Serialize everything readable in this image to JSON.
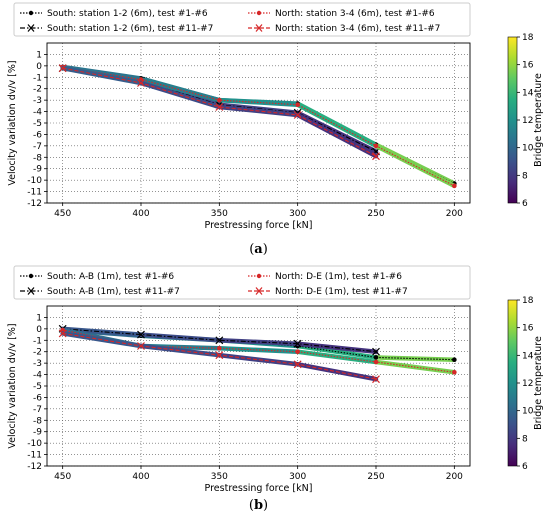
{
  "chart_data": [
    {
      "panel": "a",
      "caption": "(a)",
      "type": "line",
      "xlabel": "Prestressing force [kN]",
      "ylabel": "Velocity variation dv/v [%]",
      "xlim": [
        460,
        190
      ],
      "ylim": [
        -12,
        2
      ],
      "xticks": [
        450,
        400,
        350,
        300,
        250,
        200
      ],
      "yticks": [
        1,
        0,
        -1,
        -2,
        -3,
        -4,
        -5,
        -6,
        -7,
        -8,
        -9,
        -10,
        -11,
        -12
      ],
      "grid": true,
      "legend_position": "top",
      "colorbar": {
        "label": "Bridge temperature",
        "min": 6,
        "max": 18,
        "ticks": [
          6,
          8,
          10,
          12,
          14,
          16,
          18
        ]
      },
      "series": [
        {
          "name": "South: station 1-2 (6m), test #1-#6",
          "marker": "dot",
          "line": "dotted",
          "color": "#000000",
          "x": [
            450,
            400,
            350,
            300,
            250,
            200
          ],
          "y": [
            -0.1,
            -1.1,
            -3.0,
            -3.3,
            -6.9,
            -10.3
          ],
          "temperature": [
            10.5,
            10.8,
            11.5,
            12.5,
            14.5,
            16.5
          ]
        },
        {
          "name": "South: station 1-2 (6m), test #11-#7",
          "marker": "x",
          "line": "dashdot",
          "color": "#000000",
          "x": [
            450,
            400,
            350,
            300,
            250
          ],
          "y": [
            -0.2,
            -1.3,
            -3.4,
            -4.1,
            -7.5
          ],
          "temperature": [
            10.0,
            9.0,
            8.5,
            8.0,
            7.5
          ]
        },
        {
          "name": "North: station 3-4 (6m), test #1-#6",
          "marker": "dot",
          "line": "dotted",
          "color": "#d62728",
          "x": [
            450,
            400,
            350,
            300,
            250,
            200
          ],
          "y": [
            -0.1,
            -1.2,
            -3.0,
            -3.4,
            -7.0,
            -10.5
          ],
          "temperature": [
            10.5,
            10.8,
            11.5,
            12.5,
            14.5,
            16.5
          ]
        },
        {
          "name": "North: station 3-4 (6m), test #11-#7",
          "marker": "x",
          "line": "dashed",
          "color": "#d62728",
          "x": [
            450,
            400,
            350,
            300,
            250
          ],
          "y": [
            -0.2,
            -1.5,
            -3.6,
            -4.3,
            -7.9
          ],
          "temperature": [
            10.0,
            9.0,
            8.5,
            8.0,
            7.5
          ]
        }
      ]
    },
    {
      "panel": "b",
      "caption": "(b)",
      "type": "line",
      "xlabel": "Prestressing force [kN]",
      "ylabel": "Velocity variation dv/v [%]",
      "xlim": [
        460,
        190
      ],
      "ylim": [
        -12,
        2
      ],
      "xticks": [
        450,
        400,
        350,
        300,
        250,
        200
      ],
      "yticks": [
        1,
        0,
        -1,
        -2,
        -3,
        -4,
        -5,
        -6,
        -7,
        -8,
        -9,
        -10,
        -11,
        -12
      ],
      "grid": true,
      "legend_position": "top",
      "colorbar": {
        "label": "Bridge temperature",
        "min": 6,
        "max": 18,
        "ticks": [
          6,
          8,
          10,
          12,
          14,
          16,
          18
        ]
      },
      "series": [
        {
          "name": "South: A-B (1m), test #1-#6",
          "marker": "dot",
          "line": "dotted",
          "color": "#000000",
          "x": [
            450,
            400,
            350,
            300,
            250,
            200
          ],
          "y": [
            -0.1,
            -0.6,
            -1.0,
            -1.5,
            -2.5,
            -2.7
          ],
          "temperature": [
            10.0,
            10.5,
            11.5,
            12.5,
            14.5,
            16.5
          ]
        },
        {
          "name": "South: A-B (1m), test #11-#7",
          "marker": "x",
          "line": "dashdot",
          "color": "#000000",
          "x": [
            450,
            400,
            350,
            300,
            250
          ],
          "y": [
            0.0,
            -0.5,
            -1.0,
            -1.3,
            -2.0
          ],
          "temperature": [
            9.5,
            9.0,
            8.5,
            8.0,
            7.5
          ]
        },
        {
          "name": "North: D-E (1m), test #1-#6",
          "marker": "dot",
          "line": "dotted",
          "color": "#d62728",
          "x": [
            450,
            400,
            350,
            300,
            250,
            200
          ],
          "y": [
            -0.1,
            -1.5,
            -1.7,
            -2.0,
            -2.9,
            -3.8
          ],
          "temperature": [
            10.0,
            10.5,
            11.5,
            12.5,
            14.5,
            16.5
          ]
        },
        {
          "name": "North: D-E (1m), test #11-#7",
          "marker": "x",
          "line": "dashed",
          "color": "#d62728",
          "x": [
            450,
            400,
            350,
            300,
            250
          ],
          "y": [
            -0.4,
            -1.5,
            -2.3,
            -3.1,
            -4.4
          ],
          "temperature": [
            9.5,
            9.0,
            8.5,
            8.0,
            7.5
          ]
        }
      ]
    }
  ]
}
